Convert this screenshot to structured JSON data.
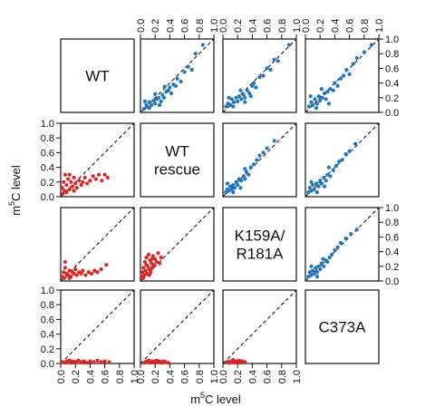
{
  "chart_data": {
    "type": "scatter",
    "layout": "pairs-matrix",
    "samples": [
      "WT",
      "WT rescue",
      "K159A/R181A",
      "C373A"
    ],
    "diagonal_labels": [
      {
        "lines": [
          "WT"
        ]
      },
      {
        "lines": [
          "WT",
          "rescue"
        ]
      },
      {
        "lines": [
          "K159A/",
          "R181A"
        ]
      },
      {
        "lines": [
          "C373A"
        ]
      }
    ],
    "xlabel": "m5C level",
    "ylabel": "m5C level",
    "xlabel_parts": {
      "base": "m",
      "sup": "5",
      "rest": "C level"
    },
    "ylabel_parts": {
      "base": "m",
      "sup": "5",
      "rest": "C level"
    },
    "xlim": [
      0,
      1
    ],
    "ylim": [
      0,
      1
    ],
    "ticks": [
      0.0,
      0.2,
      0.4,
      0.6,
      0.8,
      1.0
    ],
    "tick_labels": [
      "0.0",
      "0.2",
      "0.4",
      "0.6",
      "0.8",
      "1.0"
    ],
    "reference_line": "y = x (dashed)",
    "colors": {
      "upper": "#1f77c4",
      "lower": "#e02424",
      "diagonal_line": "#111111"
    },
    "panels": [
      {
        "row": 0,
        "col": 1,
        "color": "upper",
        "points": [
          [
            0.05,
            0.05
          ],
          [
            0.08,
            0.1
          ],
          [
            0.1,
            0.07
          ],
          [
            0.12,
            0.14
          ],
          [
            0.15,
            0.1
          ],
          [
            0.18,
            0.16
          ],
          [
            0.2,
            0.12
          ],
          [
            0.22,
            0.18
          ],
          [
            0.25,
            0.2
          ],
          [
            0.28,
            0.15
          ],
          [
            0.3,
            0.24
          ],
          [
            0.32,
            0.2
          ],
          [
            0.35,
            0.28
          ],
          [
            0.38,
            0.3
          ],
          [
            0.4,
            0.34
          ],
          [
            0.42,
            0.26
          ],
          [
            0.45,
            0.38
          ],
          [
            0.48,
            0.36
          ],
          [
            0.5,
            0.46
          ],
          [
            0.55,
            0.42
          ],
          [
            0.6,
            0.55
          ],
          [
            0.65,
            0.62
          ],
          [
            0.7,
            0.58
          ],
          [
            0.75,
            0.8
          ],
          [
            0.85,
            0.92
          ],
          [
            0.06,
            0.15
          ],
          [
            0.12,
            0.06
          ],
          [
            0.2,
            0.25
          ],
          [
            0.26,
            0.1
          ],
          [
            0.33,
            0.35
          ]
        ]
      },
      {
        "row": 0,
        "col": 2,
        "color": "upper",
        "points": [
          [
            0.04,
            0.08
          ],
          [
            0.07,
            0.12
          ],
          [
            0.1,
            0.1
          ],
          [
            0.12,
            0.18
          ],
          [
            0.15,
            0.14
          ],
          [
            0.18,
            0.2
          ],
          [
            0.2,
            0.15
          ],
          [
            0.22,
            0.22
          ],
          [
            0.25,
            0.18
          ],
          [
            0.28,
            0.24
          ],
          [
            0.3,
            0.2
          ],
          [
            0.33,
            0.3
          ],
          [
            0.36,
            0.26
          ],
          [
            0.4,
            0.36
          ],
          [
            0.42,
            0.4
          ],
          [
            0.45,
            0.34
          ],
          [
            0.5,
            0.48
          ],
          [
            0.55,
            0.5
          ],
          [
            0.6,
            0.6
          ],
          [
            0.65,
            0.58
          ],
          [
            0.7,
            0.72
          ],
          [
            0.75,
            0.7
          ],
          [
            0.9,
            0.92
          ],
          [
            0.08,
            0.2
          ],
          [
            0.14,
            0.08
          ],
          [
            0.24,
            0.3
          ],
          [
            0.3,
            0.14
          ],
          [
            0.38,
            0.22
          ]
        ]
      },
      {
        "row": 0,
        "col": 3,
        "color": "upper",
        "points": [
          [
            0.05,
            0.08
          ],
          [
            0.08,
            0.14
          ],
          [
            0.1,
            0.1
          ],
          [
            0.13,
            0.18
          ],
          [
            0.16,
            0.12
          ],
          [
            0.18,
            0.22
          ],
          [
            0.2,
            0.16
          ],
          [
            0.23,
            0.2
          ],
          [
            0.26,
            0.26
          ],
          [
            0.28,
            0.18
          ],
          [
            0.3,
            0.28
          ],
          [
            0.34,
            0.32
          ],
          [
            0.38,
            0.3
          ],
          [
            0.4,
            0.4
          ],
          [
            0.44,
            0.36
          ],
          [
            0.48,
            0.46
          ],
          [
            0.52,
            0.5
          ],
          [
            0.56,
            0.58
          ],
          [
            0.6,
            0.52
          ],
          [
            0.65,
            0.66
          ],
          [
            0.7,
            0.74
          ],
          [
            0.8,
            0.82
          ],
          [
            0.9,
            0.92
          ],
          [
            0.07,
            0.22
          ],
          [
            0.15,
            0.06
          ],
          [
            0.22,
            0.32
          ],
          [
            0.32,
            0.12
          ]
        ]
      },
      {
        "row": 1,
        "col": 0,
        "color": "lower",
        "points": [
          [
            0.02,
            0.12
          ],
          [
            0.04,
            0.2
          ],
          [
            0.05,
            0.08
          ],
          [
            0.06,
            0.3
          ],
          [
            0.08,
            0.16
          ],
          [
            0.1,
            0.24
          ],
          [
            0.12,
            0.1
          ],
          [
            0.14,
            0.2
          ],
          [
            0.16,
            0.14
          ],
          [
            0.18,
            0.26
          ],
          [
            0.2,
            0.18
          ],
          [
            0.22,
            0.12
          ],
          [
            0.25,
            0.22
          ],
          [
            0.28,
            0.16
          ],
          [
            0.3,
            0.2
          ],
          [
            0.33,
            0.26
          ],
          [
            0.36,
            0.18
          ],
          [
            0.4,
            0.22
          ],
          [
            0.44,
            0.28
          ],
          [
            0.48,
            0.24
          ],
          [
            0.52,
            0.3
          ],
          [
            0.56,
            0.22
          ],
          [
            0.6,
            0.3
          ],
          [
            0.64,
            0.26
          ],
          [
            0.08,
            0.06
          ],
          [
            0.12,
            0.3
          ],
          [
            0.03,
            0.04
          ],
          [
            0.18,
            0.08
          ]
        ]
      },
      {
        "row": 1,
        "col": 2,
        "color": "upper",
        "points": [
          [
            0.04,
            0.06
          ],
          [
            0.06,
            0.1
          ],
          [
            0.08,
            0.08
          ],
          [
            0.1,
            0.14
          ],
          [
            0.12,
            0.1
          ],
          [
            0.14,
            0.16
          ],
          [
            0.16,
            0.12
          ],
          [
            0.18,
            0.2
          ],
          [
            0.2,
            0.16
          ],
          [
            0.22,
            0.24
          ],
          [
            0.25,
            0.22
          ],
          [
            0.28,
            0.28
          ],
          [
            0.3,
            0.24
          ],
          [
            0.32,
            0.34
          ],
          [
            0.35,
            0.3
          ],
          [
            0.38,
            0.4
          ],
          [
            0.42,
            0.44
          ],
          [
            0.46,
            0.5
          ],
          [
            0.5,
            0.56
          ],
          [
            0.55,
            0.6
          ],
          [
            0.6,
            0.66
          ],
          [
            0.7,
            0.76
          ],
          [
            0.06,
            0.18
          ],
          [
            0.14,
            0.06
          ],
          [
            0.24,
            0.12
          ],
          [
            0.3,
            0.38
          ]
        ]
      },
      {
        "row": 1,
        "col": 3,
        "color": "upper",
        "points": [
          [
            0.04,
            0.06
          ],
          [
            0.06,
            0.12
          ],
          [
            0.08,
            0.08
          ],
          [
            0.1,
            0.16
          ],
          [
            0.12,
            0.1
          ],
          [
            0.15,
            0.18
          ],
          [
            0.18,
            0.14
          ],
          [
            0.2,
            0.22
          ],
          [
            0.22,
            0.18
          ],
          [
            0.25,
            0.26
          ],
          [
            0.28,
            0.22
          ],
          [
            0.3,
            0.3
          ],
          [
            0.34,
            0.28
          ],
          [
            0.38,
            0.36
          ],
          [
            0.42,
            0.42
          ],
          [
            0.46,
            0.48
          ],
          [
            0.5,
            0.5
          ],
          [
            0.55,
            0.58
          ],
          [
            0.6,
            0.62
          ],
          [
            0.68,
            0.72
          ],
          [
            0.08,
            0.2
          ],
          [
            0.16,
            0.06
          ],
          [
            0.26,
            0.14
          ],
          [
            0.32,
            0.4
          ]
        ]
      },
      {
        "row": 2,
        "col": 0,
        "color": "lower",
        "points": [
          [
            0.02,
            0.06
          ],
          [
            0.04,
            0.12
          ],
          [
            0.05,
            0.04
          ],
          [
            0.06,
            0.18
          ],
          [
            0.08,
            0.1
          ],
          [
            0.1,
            0.08
          ],
          [
            0.12,
            0.14
          ],
          [
            0.14,
            0.06
          ],
          [
            0.16,
            0.12
          ],
          [
            0.18,
            0.1
          ],
          [
            0.2,
            0.16
          ],
          [
            0.22,
            0.08
          ],
          [
            0.25,
            0.12
          ],
          [
            0.28,
            0.1
          ],
          [
            0.3,
            0.14
          ],
          [
            0.34,
            0.08
          ],
          [
            0.38,
            0.12
          ],
          [
            0.42,
            0.1
          ],
          [
            0.46,
            0.14
          ],
          [
            0.5,
            0.12
          ],
          [
            0.55,
            0.16
          ],
          [
            0.62,
            0.22
          ],
          [
            0.06,
            0.26
          ],
          [
            0.12,
            0.04
          ]
        ]
      },
      {
        "row": 2,
        "col": 1,
        "color": "lower",
        "points": [
          [
            0.02,
            0.06
          ],
          [
            0.03,
            0.12
          ],
          [
            0.04,
            0.18
          ],
          [
            0.05,
            0.08
          ],
          [
            0.06,
            0.26
          ],
          [
            0.07,
            0.14
          ],
          [
            0.08,
            0.32
          ],
          [
            0.09,
            0.1
          ],
          [
            0.1,
            0.2
          ],
          [
            0.11,
            0.36
          ],
          [
            0.12,
            0.16
          ],
          [
            0.13,
            0.28
          ],
          [
            0.14,
            0.12
          ],
          [
            0.15,
            0.24
          ],
          [
            0.16,
            0.18
          ],
          [
            0.17,
            0.34
          ],
          [
            0.18,
            0.22
          ],
          [
            0.2,
            0.3
          ],
          [
            0.22,
            0.26
          ],
          [
            0.24,
            0.38
          ],
          [
            0.26,
            0.24
          ],
          [
            0.28,
            0.32
          ],
          [
            0.04,
            0.04
          ],
          [
            0.08,
            0.22
          ],
          [
            0.12,
            0.08
          ],
          [
            0.16,
            0.3
          ]
        ]
      },
      {
        "row": 2,
        "col": 3,
        "color": "upper",
        "points": [
          [
            0.04,
            0.06
          ],
          [
            0.06,
            0.12
          ],
          [
            0.08,
            0.08
          ],
          [
            0.1,
            0.14
          ],
          [
            0.12,
            0.1
          ],
          [
            0.14,
            0.18
          ],
          [
            0.16,
            0.12
          ],
          [
            0.18,
            0.2
          ],
          [
            0.2,
            0.16
          ],
          [
            0.22,
            0.24
          ],
          [
            0.25,
            0.2
          ],
          [
            0.28,
            0.28
          ],
          [
            0.3,
            0.26
          ],
          [
            0.33,
            0.32
          ],
          [
            0.36,
            0.36
          ],
          [
            0.4,
            0.42
          ],
          [
            0.44,
            0.46
          ],
          [
            0.48,
            0.52
          ],
          [
            0.55,
            0.58
          ],
          [
            0.62,
            0.64
          ],
          [
            0.7,
            0.7
          ],
          [
            0.08,
            0.2
          ],
          [
            0.16,
            0.06
          ],
          [
            0.24,
            0.3
          ]
        ]
      },
      {
        "row": 3,
        "col": 0,
        "color": "lower",
        "points": [
          [
            0.02,
            0.02
          ],
          [
            0.05,
            0.01
          ],
          [
            0.08,
            0.03
          ],
          [
            0.1,
            0.02
          ],
          [
            0.13,
            0.01
          ],
          [
            0.16,
            0.03
          ],
          [
            0.2,
            0.02
          ],
          [
            0.24,
            0.04
          ],
          [
            0.28,
            0.02
          ],
          [
            0.32,
            0.03
          ],
          [
            0.36,
            0.01
          ],
          [
            0.4,
            0.03
          ],
          [
            0.45,
            0.02
          ],
          [
            0.5,
            0.04
          ],
          [
            0.55,
            0.02
          ],
          [
            0.6,
            0.03
          ],
          [
            0.66,
            0.02
          ],
          [
            0.12,
            0.04
          ],
          [
            0.3,
            0.01
          ]
        ]
      },
      {
        "row": 3,
        "col": 1,
        "color": "lower",
        "points": [
          [
            0.06,
            0.01
          ],
          [
            0.08,
            0.03
          ],
          [
            0.1,
            0.02
          ],
          [
            0.12,
            0.04
          ],
          [
            0.14,
            0.01
          ],
          [
            0.16,
            0.02
          ],
          [
            0.18,
            0.03
          ],
          [
            0.2,
            0.01
          ],
          [
            0.22,
            0.04
          ],
          [
            0.24,
            0.02
          ],
          [
            0.26,
            0.03
          ],
          [
            0.28,
            0.01
          ],
          [
            0.3,
            0.02
          ],
          [
            0.32,
            0.03
          ],
          [
            0.34,
            0.02
          ],
          [
            0.38,
            0.01
          ]
        ]
      },
      {
        "row": 3,
        "col": 2,
        "color": "lower",
        "points": [
          [
            0.06,
            0.02
          ],
          [
            0.08,
            0.01
          ],
          [
            0.1,
            0.03
          ],
          [
            0.12,
            0.02
          ],
          [
            0.14,
            0.05
          ],
          [
            0.16,
            0.01
          ],
          [
            0.18,
            0.03
          ],
          [
            0.2,
            0.02
          ],
          [
            0.22,
            0.04
          ],
          [
            0.24,
            0.01
          ],
          [
            0.26,
            0.03
          ],
          [
            0.3,
            0.02
          ]
        ]
      }
    ],
    "top_axis_cols": [
      1,
      2,
      3
    ],
    "bottom_axis_cols": [
      0,
      1,
      2
    ],
    "left_axis_rows": [
      1,
      3
    ],
    "right_axis_rows": [
      0,
      2
    ]
  }
}
